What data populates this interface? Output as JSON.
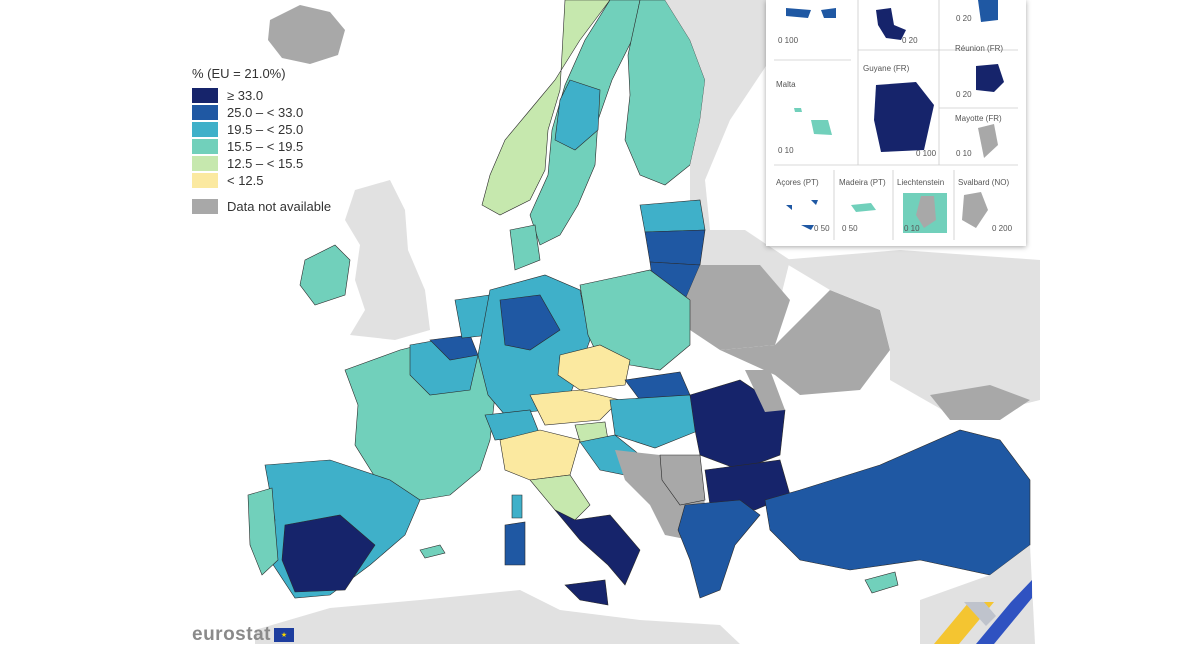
{
  "legend": {
    "title": "% (EU = 21.0%)",
    "classes": [
      {
        "label": "≥ 33.0",
        "color": "#16246b"
      },
      {
        "label": "25.0 – < 33.0",
        "color": "#1f58a3"
      },
      {
        "label": "19.5 – < 25.0",
        "color": "#3fb0c9"
      },
      {
        "label": "15.5 – < 19.5",
        "color": "#71d0bb"
      },
      {
        "label": "12.5 – < 15.5",
        "color": "#c6e8ae"
      },
      {
        "label": "< 12.5",
        "color": "#fbe9a0"
      }
    ],
    "not_available": {
      "label": "Data not available",
      "color": "#a8a8a8"
    }
  },
  "colors": {
    "non_eu_land": "#e1e1e1",
    "sea": "#ffffff",
    "borders": "#2a2a2a"
  },
  "insets": {
    "malta": {
      "label": "Malta",
      "scale": "0 10"
    },
    "guyane": {
      "label": "Guyane (FR)",
      "scale": "0 100"
    },
    "reunion": {
      "label": "Réunion (FR)",
      "scale": "0 20"
    },
    "mayotte": {
      "label": "Mayotte (FR)",
      "scale": "0 10"
    },
    "acores": {
      "label": "Açores (PT)",
      "scale": "0 50"
    },
    "madeira": {
      "label": "Madeira (PT)",
      "scale": "0 50"
    },
    "liechtenstein": {
      "label": "Liechtenstein",
      "scale": "0 10"
    },
    "svalbard": {
      "label": "Svalbard (NO)",
      "scale": "0 200"
    },
    "top_left": {
      "scale": "0 100"
    },
    "guadeloupe": {
      "scale": "0 20"
    },
    "top_right": {
      "scale": "0 20"
    }
  },
  "branding": {
    "name": "eurostat"
  }
}
